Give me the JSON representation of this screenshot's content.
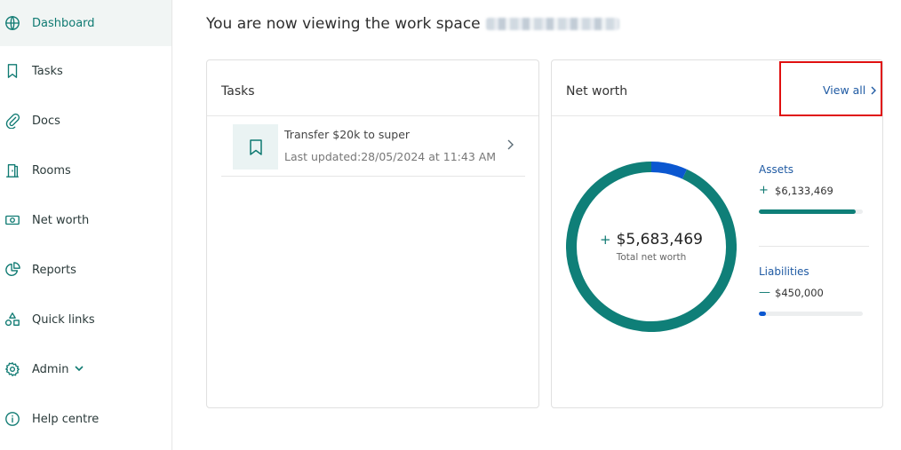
{
  "sidebar": {
    "items": [
      {
        "label": "Dashboard",
        "icon": "globe-icon",
        "active": true
      },
      {
        "label": "Tasks",
        "icon": "bookmark-icon"
      },
      {
        "label": "Docs",
        "icon": "paperclip-icon"
      },
      {
        "label": "Rooms",
        "icon": "door-icon"
      },
      {
        "label": "Net worth",
        "icon": "banknote-icon"
      },
      {
        "label": "Reports",
        "icon": "pie-chart-icon"
      },
      {
        "label": "Quick links",
        "icon": "shapes-icon"
      },
      {
        "label": "Admin",
        "icon": "gear-icon",
        "has_dropdown": true
      },
      {
        "label": "Help centre",
        "icon": "info-icon"
      }
    ]
  },
  "header": {
    "workspace_prefix": "You are now viewing the work space"
  },
  "tasks_card": {
    "title": "Tasks",
    "items": [
      {
        "title": "Transfer $20k to super",
        "updated": "Last updated:28/05/2024 at 11:43 AM"
      }
    ]
  },
  "networth_card": {
    "title": "Net worth",
    "view_all_label": "View all",
    "total": {
      "sign": "+",
      "value": "$5,683,469",
      "label": "Total net worth"
    },
    "assets": {
      "label": "Assets",
      "sign": "+",
      "value": "$6,133,469",
      "fill_fraction": 0.93,
      "color": "#0f7f78"
    },
    "liabilities": {
      "label": "Liabilities",
      "sign": "—",
      "value": "$450,000",
      "fill_fraction": 0.07,
      "color": "#0b57d0"
    }
  },
  "chart_data": {
    "type": "pie",
    "categories": [
      "Assets",
      "Liabilities"
    ],
    "values": [
      6133469,
      450000
    ],
    "colors": [
      "#0f7f78",
      "#0b57d0"
    ]
  },
  "colors": {
    "accent": "#0f7a72",
    "link": "#1f5aa3",
    "highlight": "#e01010"
  }
}
